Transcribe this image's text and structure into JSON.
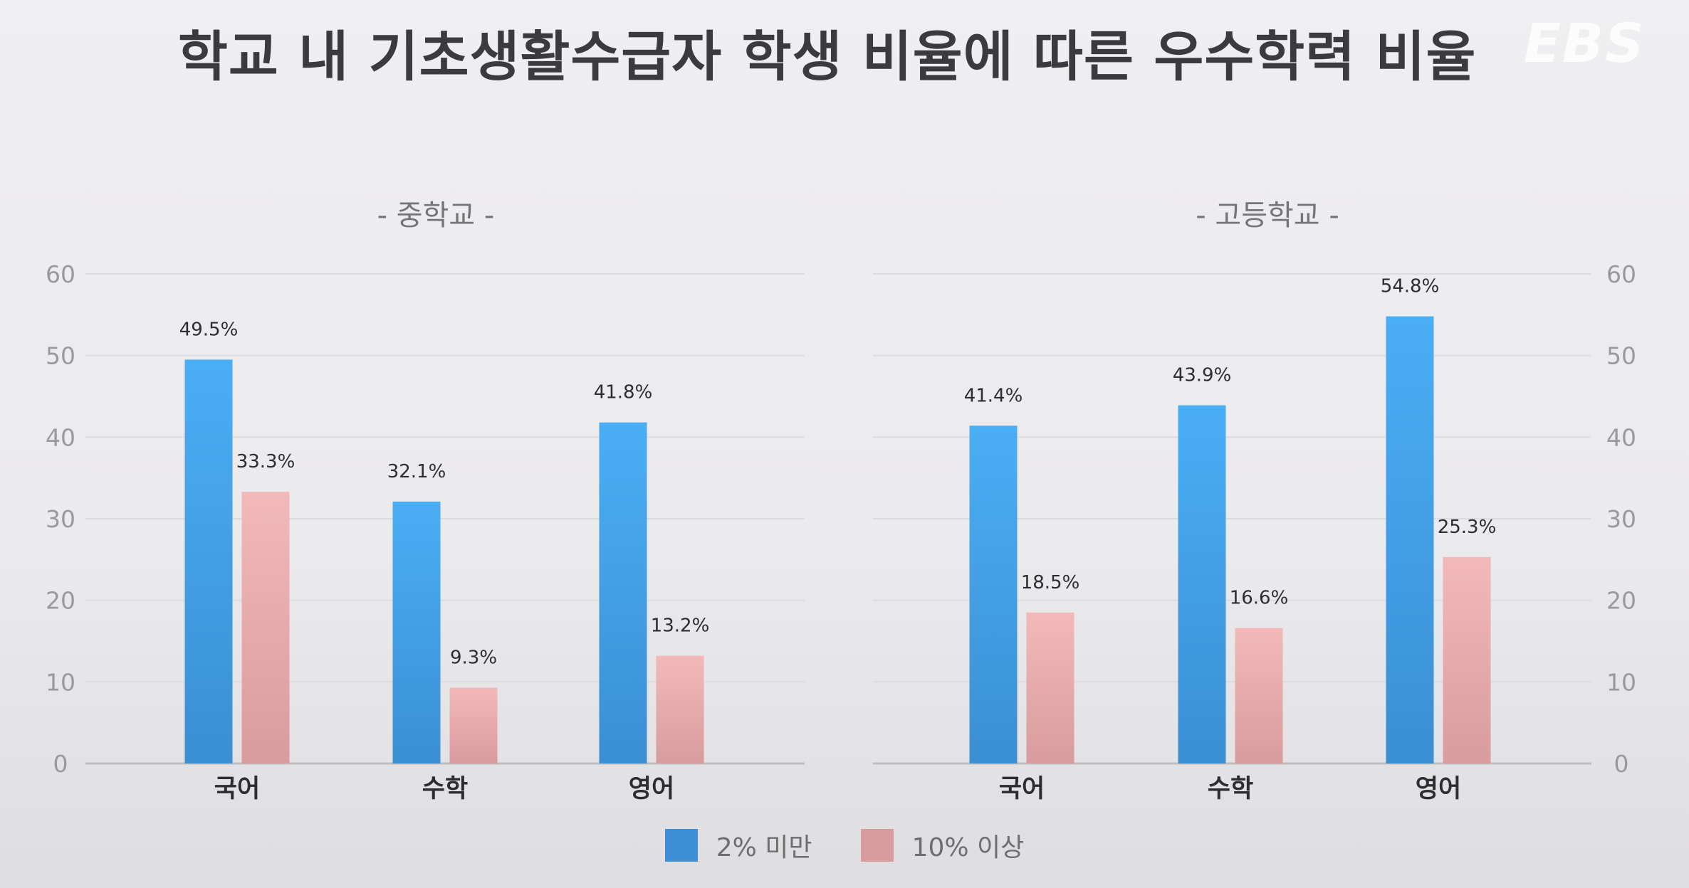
{
  "title": "학교 내 기초생활수급자 학생 비율에 따른 우수학력 비율",
  "logo": "EBS",
  "colors": {
    "series1": "#42a4ee",
    "series1_dark": "#3b8fd3",
    "series2": "#efb4b4",
    "series2_dark": "#dc9c9e"
  },
  "chart_data": [
    {
      "type": "bar",
      "title": "- 중학교 -",
      "categories": [
        "국어",
        "수학",
        "영어"
      ],
      "series": [
        {
          "name": "2% 미만",
          "values": [
            49.5,
            32.1,
            41.8
          ],
          "labels": [
            "49.5%",
            "32.1%",
            "41.8%"
          ]
        },
        {
          "name": "10% 이상",
          "values": [
            33.3,
            9.3,
            13.2
          ],
          "labels": [
            "33.3%",
            "9.3%",
            "13.2%"
          ]
        }
      ],
      "ylim": [
        0,
        60
      ],
      "yticks": [
        "0",
        "10",
        "20",
        "30",
        "40",
        "50",
        "60"
      ],
      "axis_side": "left",
      "grid": true
    },
    {
      "type": "bar",
      "title": "- 고등학교 -",
      "categories": [
        "국어",
        "수학",
        "영어"
      ],
      "series": [
        {
          "name": "2% 미만",
          "values": [
            41.4,
            43.9,
            54.8
          ],
          "labels": [
            "41.4%",
            "43.9%",
            "54.8%"
          ]
        },
        {
          "name": "10% 이상",
          "values": [
            18.5,
            16.6,
            25.3
          ],
          "labels": [
            "18.5%",
            "16.6%",
            "25.3%"
          ]
        }
      ],
      "ylim": [
        0,
        60
      ],
      "yticks": [
        "0",
        "10",
        "20",
        "30",
        "40",
        "50",
        "60"
      ],
      "axis_side": "right",
      "grid": true
    }
  ],
  "legend": [
    {
      "label": "2% 미만",
      "color": "#3e8fd6"
    },
    {
      "label": "10% 이상",
      "color": "#d99c9d"
    }
  ]
}
